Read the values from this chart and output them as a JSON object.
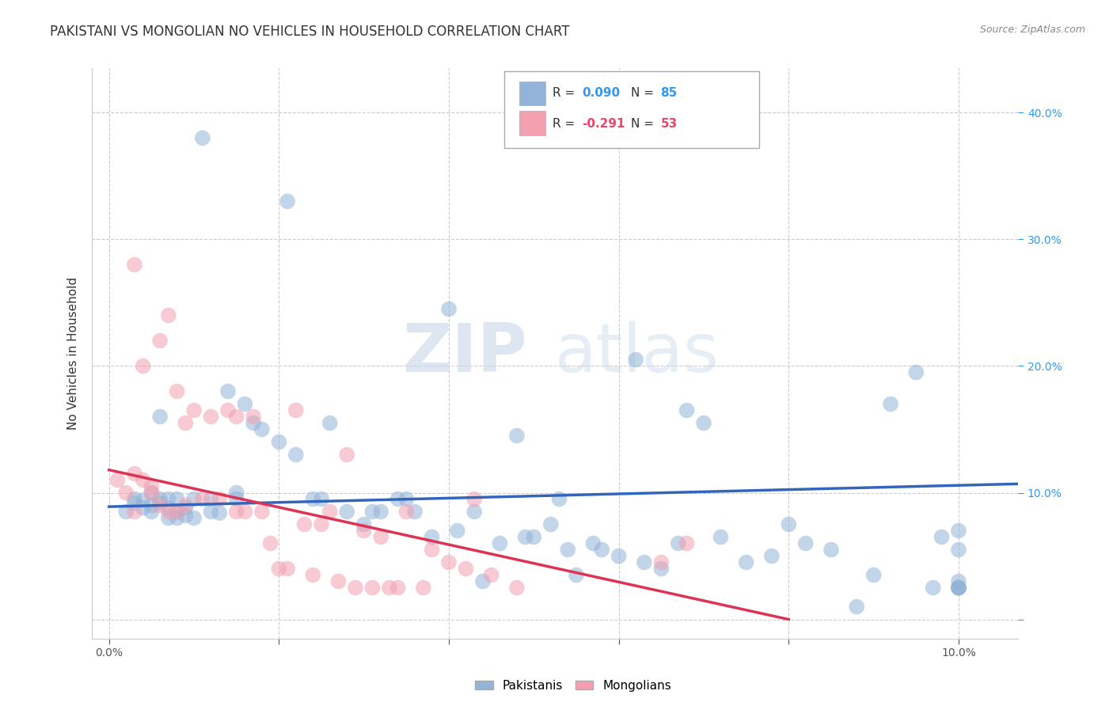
{
  "title": "PAKISTANI VS MONGOLIAN NO VEHICLES IN HOUSEHOLD CORRELATION CHART",
  "source": "Source: ZipAtlas.com",
  "ylabel": "No Vehicles in Household",
  "x_ticks": [
    0.0,
    0.02,
    0.04,
    0.06,
    0.08,
    0.1
  ],
  "y_ticks": [
    0.0,
    0.1,
    0.2,
    0.3,
    0.4
  ],
  "y_tick_labels_right": [
    "",
    "10.0%",
    "20.0%",
    "30.0%",
    "40.0%"
  ],
  "xlim": [
    -0.002,
    0.107
  ],
  "ylim": [
    -0.015,
    0.435
  ],
  "background_color": "#ffffff",
  "grid_color": "#cccccc",
  "watermark_zip": "ZIP",
  "watermark_atlas": "atlas",
  "legend_R_blue": "R = 0.090",
  "legend_N_blue": "N = 85",
  "legend_R_pink": "R = -0.291",
  "legend_N_pink": "N = 53",
  "legend_label_blue": "Pakistanis",
  "legend_label_pink": "Mongolians",
  "blue_color": "#92b4d8",
  "pink_color": "#f4a0b0",
  "blue_line_color": "#3366bb",
  "pink_line_color": "#dd3355",
  "blue_scatter_x": [
    0.002,
    0.003,
    0.003,
    0.004,
    0.004,
    0.005,
    0.005,
    0.005,
    0.006,
    0.006,
    0.006,
    0.007,
    0.007,
    0.007,
    0.008,
    0.008,
    0.008,
    0.009,
    0.009,
    0.01,
    0.01,
    0.011,
    0.012,
    0.012,
    0.013,
    0.014,
    0.015,
    0.015,
    0.016,
    0.017,
    0.018,
    0.02,
    0.021,
    0.022,
    0.024,
    0.025,
    0.026,
    0.028,
    0.03,
    0.031,
    0.032,
    0.034,
    0.035,
    0.036,
    0.038,
    0.04,
    0.041,
    0.043,
    0.044,
    0.046,
    0.048,
    0.049,
    0.05,
    0.052,
    0.053,
    0.054,
    0.055,
    0.057,
    0.058,
    0.06,
    0.062,
    0.063,
    0.065,
    0.067,
    0.068,
    0.07,
    0.072,
    0.075,
    0.078,
    0.08,
    0.082,
    0.085,
    0.088,
    0.09,
    0.092,
    0.095,
    0.097,
    0.098,
    0.1,
    0.1,
    0.1,
    0.1,
    0.1,
    0.1,
    0.1
  ],
  "blue_scatter_y": [
    0.085,
    0.092,
    0.095,
    0.088,
    0.094,
    0.1,
    0.085,
    0.09,
    0.092,
    0.095,
    0.16,
    0.088,
    0.08,
    0.095,
    0.08,
    0.085,
    0.095,
    0.088,
    0.082,
    0.08,
    0.095,
    0.38,
    0.085,
    0.095,
    0.084,
    0.18,
    0.1,
    0.095,
    0.17,
    0.155,
    0.15,
    0.14,
    0.33,
    0.13,
    0.095,
    0.095,
    0.155,
    0.085,
    0.075,
    0.085,
    0.085,
    0.095,
    0.095,
    0.085,
    0.065,
    0.245,
    0.07,
    0.085,
    0.03,
    0.06,
    0.145,
    0.065,
    0.065,
    0.075,
    0.095,
    0.055,
    0.035,
    0.06,
    0.055,
    0.05,
    0.205,
    0.045,
    0.04,
    0.06,
    0.165,
    0.155,
    0.065,
    0.045,
    0.05,
    0.075,
    0.06,
    0.055,
    0.01,
    0.035,
    0.17,
    0.195,
    0.025,
    0.065,
    0.025,
    0.03,
    0.055,
    0.025,
    0.07,
    0.025,
    0.025
  ],
  "pink_scatter_x": [
    0.001,
    0.002,
    0.003,
    0.003,
    0.003,
    0.004,
    0.004,
    0.005,
    0.005,
    0.006,
    0.006,
    0.007,
    0.007,
    0.008,
    0.008,
    0.009,
    0.009,
    0.01,
    0.011,
    0.012,
    0.013,
    0.014,
    0.015,
    0.015,
    0.016,
    0.017,
    0.018,
    0.019,
    0.02,
    0.021,
    0.022,
    0.023,
    0.024,
    0.025,
    0.026,
    0.027,
    0.028,
    0.029,
    0.03,
    0.031,
    0.032,
    0.033,
    0.034,
    0.035,
    0.037,
    0.038,
    0.04,
    0.042,
    0.043,
    0.045,
    0.048,
    0.065,
    0.068
  ],
  "pink_scatter_y": [
    0.11,
    0.1,
    0.115,
    0.085,
    0.28,
    0.2,
    0.11,
    0.1,
    0.105,
    0.22,
    0.09,
    0.085,
    0.24,
    0.18,
    0.085,
    0.155,
    0.09,
    0.165,
    0.095,
    0.16,
    0.095,
    0.165,
    0.085,
    0.16,
    0.085,
    0.16,
    0.085,
    0.06,
    0.04,
    0.04,
    0.165,
    0.075,
    0.035,
    0.075,
    0.085,
    0.03,
    0.13,
    0.025,
    0.07,
    0.025,
    0.065,
    0.025,
    0.025,
    0.085,
    0.025,
    0.055,
    0.045,
    0.04,
    0.095,
    0.035,
    0.025,
    0.045,
    0.06
  ],
  "blue_line_x": [
    0.0,
    0.107
  ],
  "blue_line_y": [
    0.089,
    0.107
  ],
  "pink_line_x": [
    0.0,
    0.08
  ],
  "pink_line_y": [
    0.118,
    0.0
  ],
  "title_fontsize": 12,
  "axis_label_fontsize": 11,
  "tick_fontsize": 10,
  "legend_fontsize": 11,
  "scatter_size": 200,
  "scatter_alpha": 0.55
}
